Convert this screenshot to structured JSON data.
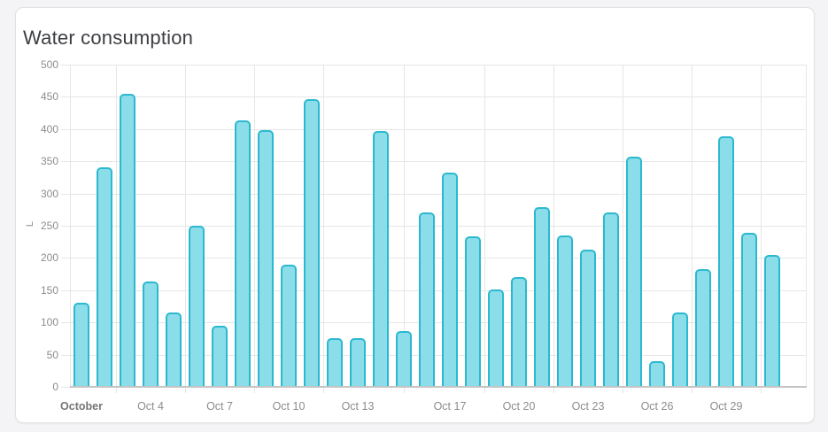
{
  "page": {
    "background_color": "#f4f4f6"
  },
  "card": {
    "background_color": "#ffffff",
    "border_color": "#e1e2e5"
  },
  "chart_data": {
    "type": "bar",
    "title": "Water consumption",
    "ylabel": "L",
    "xlabel": "",
    "ylim": [
      0,
      500
    ],
    "yticks": [
      0,
      50,
      100,
      150,
      200,
      250,
      300,
      350,
      400,
      450,
      500
    ],
    "grid": true,
    "legend": false,
    "categories": [
      "Oct 1",
      "Oct 2",
      "Oct 3",
      "Oct 4",
      "Oct 5",
      "Oct 6",
      "Oct 7",
      "Oct 8",
      "Oct 9",
      "Oct 10",
      "Oct 11",
      "Oct 12",
      "Oct 13",
      "Oct 14",
      "Oct 15",
      "Oct 16",
      "Oct 17",
      "Oct 18",
      "Oct 19",
      "Oct 20",
      "Oct 21",
      "Oct 22",
      "Oct 23",
      "Oct 24",
      "Oct 25",
      "Oct 26",
      "Oct 27",
      "Oct 28",
      "Oct 29",
      "Oct 30",
      "Oct 31"
    ],
    "values": [
      131,
      340,
      455,
      164,
      115,
      250,
      95,
      413,
      399,
      189,
      447,
      75,
      76,
      397,
      86,
      270,
      332,
      233,
      151,
      170,
      279,
      235,
      213,
      271,
      357,
      40,
      116,
      183,
      389,
      239,
      205
    ],
    "x_tick_labels": [
      {
        "label": "October",
        "day": 1,
        "bold": true
      },
      {
        "label": "Oct 4",
        "day": 4,
        "bold": false
      },
      {
        "label": "Oct 7",
        "day": 7,
        "bold": false
      },
      {
        "label": "Oct 10",
        "day": 10,
        "bold": false
      },
      {
        "label": "Oct 13",
        "day": 13,
        "bold": false
      },
      {
        "label": "Oct 17",
        "day": 17,
        "bold": false
      },
      {
        "label": "Oct 20",
        "day": 20,
        "bold": false
      },
      {
        "label": "Oct 23",
        "day": 23,
        "bold": false
      },
      {
        "label": "Oct 26",
        "day": 26,
        "bold": false
      },
      {
        "label": "Oct 29",
        "day": 29,
        "bold": false
      }
    ],
    "vgrid_slot_boundaries": [
      2,
      5,
      8,
      11,
      14.5,
      18,
      21,
      24,
      27,
      30,
      32
    ],
    "total_slots": 32,
    "colors": {
      "bar_fill": "#8ADDE9",
      "bar_border": "#2CB9CF",
      "gridline": "#e6e6e6",
      "axis_line": "#c4c4c6",
      "tick_text": "#8c8c8c",
      "bold_tick_text": "#757575",
      "title_text": "#3c3e42"
    }
  }
}
